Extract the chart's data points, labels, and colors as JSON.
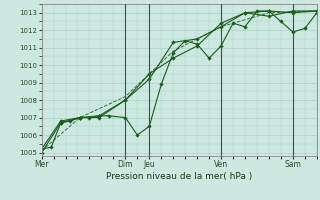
{
  "background_color": "#cce8e0",
  "grid_color": "#aad0c8",
  "line_color": "#1a5c1a",
  "title": "Pression niveau de la mer( hPa )",
  "ylim": [
    1004.8,
    1013.5
  ],
  "yticks": [
    1005,
    1006,
    1007,
    1008,
    1009,
    1010,
    1011,
    1012,
    1013
  ],
  "day_labels": [
    "Mer",
    "Dim",
    "Jeu",
    "Ven",
    "Sam"
  ],
  "day_positions": [
    0.0,
    3.5,
    4.5,
    7.5,
    10.5
  ],
  "vline_positions": [
    3.5,
    4.5,
    7.5,
    10.5
  ],
  "xlim": [
    0,
    11.5
  ],
  "series1_x": [
    0.0,
    0.4,
    0.8,
    1.2,
    1.6,
    2.0,
    2.4,
    2.8,
    3.5,
    4.0,
    4.5,
    5.0,
    5.5,
    6.0,
    6.5,
    7.0,
    7.5,
    8.0,
    8.5,
    9.0,
    9.5,
    10.0,
    10.5,
    11.0,
    11.5
  ],
  "series1_y": [
    1005.2,
    1005.3,
    1006.7,
    1006.8,
    1007.0,
    1007.0,
    1007.1,
    1007.1,
    1007.0,
    1006.0,
    1006.5,
    1008.9,
    1010.7,
    1011.4,
    1011.2,
    1010.4,
    1011.1,
    1012.4,
    1012.2,
    1013.1,
    1013.1,
    1012.5,
    1011.9,
    1012.1,
    1013.0
  ],
  "series2_x": [
    0.0,
    0.8,
    1.6,
    2.4,
    3.5,
    4.5,
    5.5,
    6.5,
    7.5,
    8.5,
    9.5,
    10.5,
    11.5
  ],
  "series2_y": [
    1005.2,
    1006.8,
    1007.0,
    1007.1,
    1008.0,
    1009.2,
    1011.3,
    1011.5,
    1012.2,
    1013.0,
    1013.1,
    1013.0,
    1013.1
  ],
  "series3_x": [
    0.0,
    0.8,
    1.6,
    2.4,
    3.5,
    4.5,
    5.5,
    6.5,
    7.5,
    8.5,
    9.5,
    10.5,
    11.5
  ],
  "series3_y": [
    1005.0,
    1006.7,
    1007.0,
    1007.0,
    1008.0,
    1009.5,
    1010.4,
    1011.1,
    1012.4,
    1013.0,
    1012.8,
    1013.1,
    1013.1
  ],
  "series4_x": [
    0.0,
    1.6,
    3.5,
    5.5,
    7.5,
    9.5,
    11.5
  ],
  "series4_y": [
    1005.1,
    1007.0,
    1008.2,
    1010.8,
    1012.2,
    1013.0,
    1013.1
  ]
}
